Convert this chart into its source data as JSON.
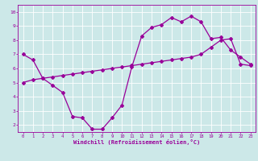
{
  "xlabel": "Windchill (Refroidissement éolien,°C)",
  "bg_color": "#cce8e8",
  "grid_color": "#ffffff",
  "line_color": "#990099",
  "xlim": [
    -0.5,
    23.5
  ],
  "ylim": [
    1.5,
    10.5
  ],
  "xticks": [
    0,
    1,
    2,
    3,
    4,
    5,
    6,
    7,
    8,
    9,
    10,
    11,
    12,
    13,
    14,
    15,
    16,
    17,
    18,
    19,
    20,
    21,
    22,
    23
  ],
  "yticks": [
    2,
    3,
    4,
    5,
    6,
    7,
    8,
    9,
    10
  ],
  "curve1_x": [
    0,
    1,
    2,
    3,
    4,
    5,
    6,
    7,
    8,
    9,
    10,
    11,
    12,
    13,
    14,
    15,
    16,
    17,
    18,
    19,
    20,
    21,
    22,
    23
  ],
  "curve1_y": [
    7.0,
    6.6,
    5.3,
    4.8,
    4.3,
    2.6,
    2.5,
    1.7,
    1.7,
    2.5,
    3.4,
    6.1,
    8.3,
    8.9,
    9.1,
    9.6,
    9.3,
    9.7,
    9.3,
    8.1,
    8.2,
    7.3,
    6.8,
    6.3
  ],
  "curve2_x": [
    0,
    1,
    2,
    3,
    4,
    5,
    6,
    7,
    8,
    9,
    10,
    11,
    12,
    13,
    14,
    15,
    16,
    17,
    18,
    19,
    20,
    21,
    22,
    23
  ],
  "curve2_y": [
    5.0,
    5.2,
    5.3,
    5.4,
    5.5,
    5.6,
    5.7,
    5.8,
    5.9,
    6.0,
    6.1,
    6.2,
    6.3,
    6.4,
    6.5,
    6.6,
    6.7,
    6.8,
    7.0,
    7.5,
    8.0,
    8.1,
    6.3,
    6.2
  ],
  "marker": "D",
  "markersize": 2,
  "linewidth": 0.9
}
